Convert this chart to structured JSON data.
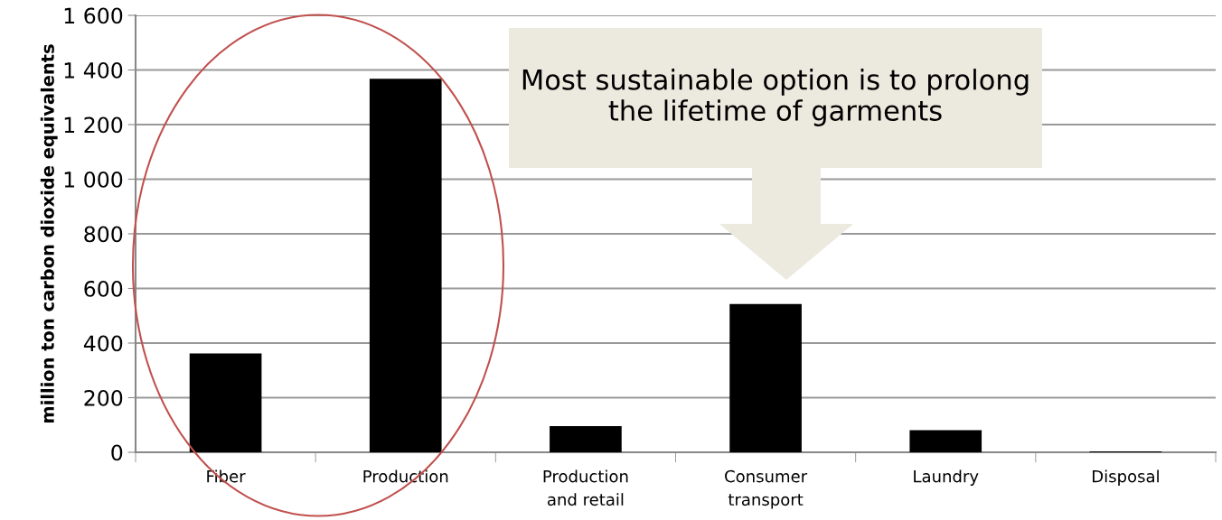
{
  "chart_data": {
    "type": "bar",
    "ylabel": "million ton carbon dioxide equivalents",
    "categories": [
      "Fiber",
      "Production",
      "Production\nand retail",
      "Consumer\ntransport",
      "Laundry",
      "Disposal"
    ],
    "values": [
      362,
      1368,
      96,
      543,
      81,
      3
    ],
    "color": "#000000",
    "ylim": [
      0,
      1600
    ],
    "yticks": [
      0,
      200,
      400,
      {
        "value": 600,
        "label": "600"
      },
      {
        "value": 800,
        "label": "800"
      },
      {
        "value": 1000,
        "label": "1 000"
      },
      {
        "value": 1200,
        "label": "1 200"
      },
      {
        "value": 1400,
        "label": "1 400"
      },
      {
        "value": 1600,
        "label": "1 600"
      }
    ],
    "grid": "y",
    "annotations": [
      "Most sustainable option is to prolong the lifetime of garments"
    ]
  }
}
